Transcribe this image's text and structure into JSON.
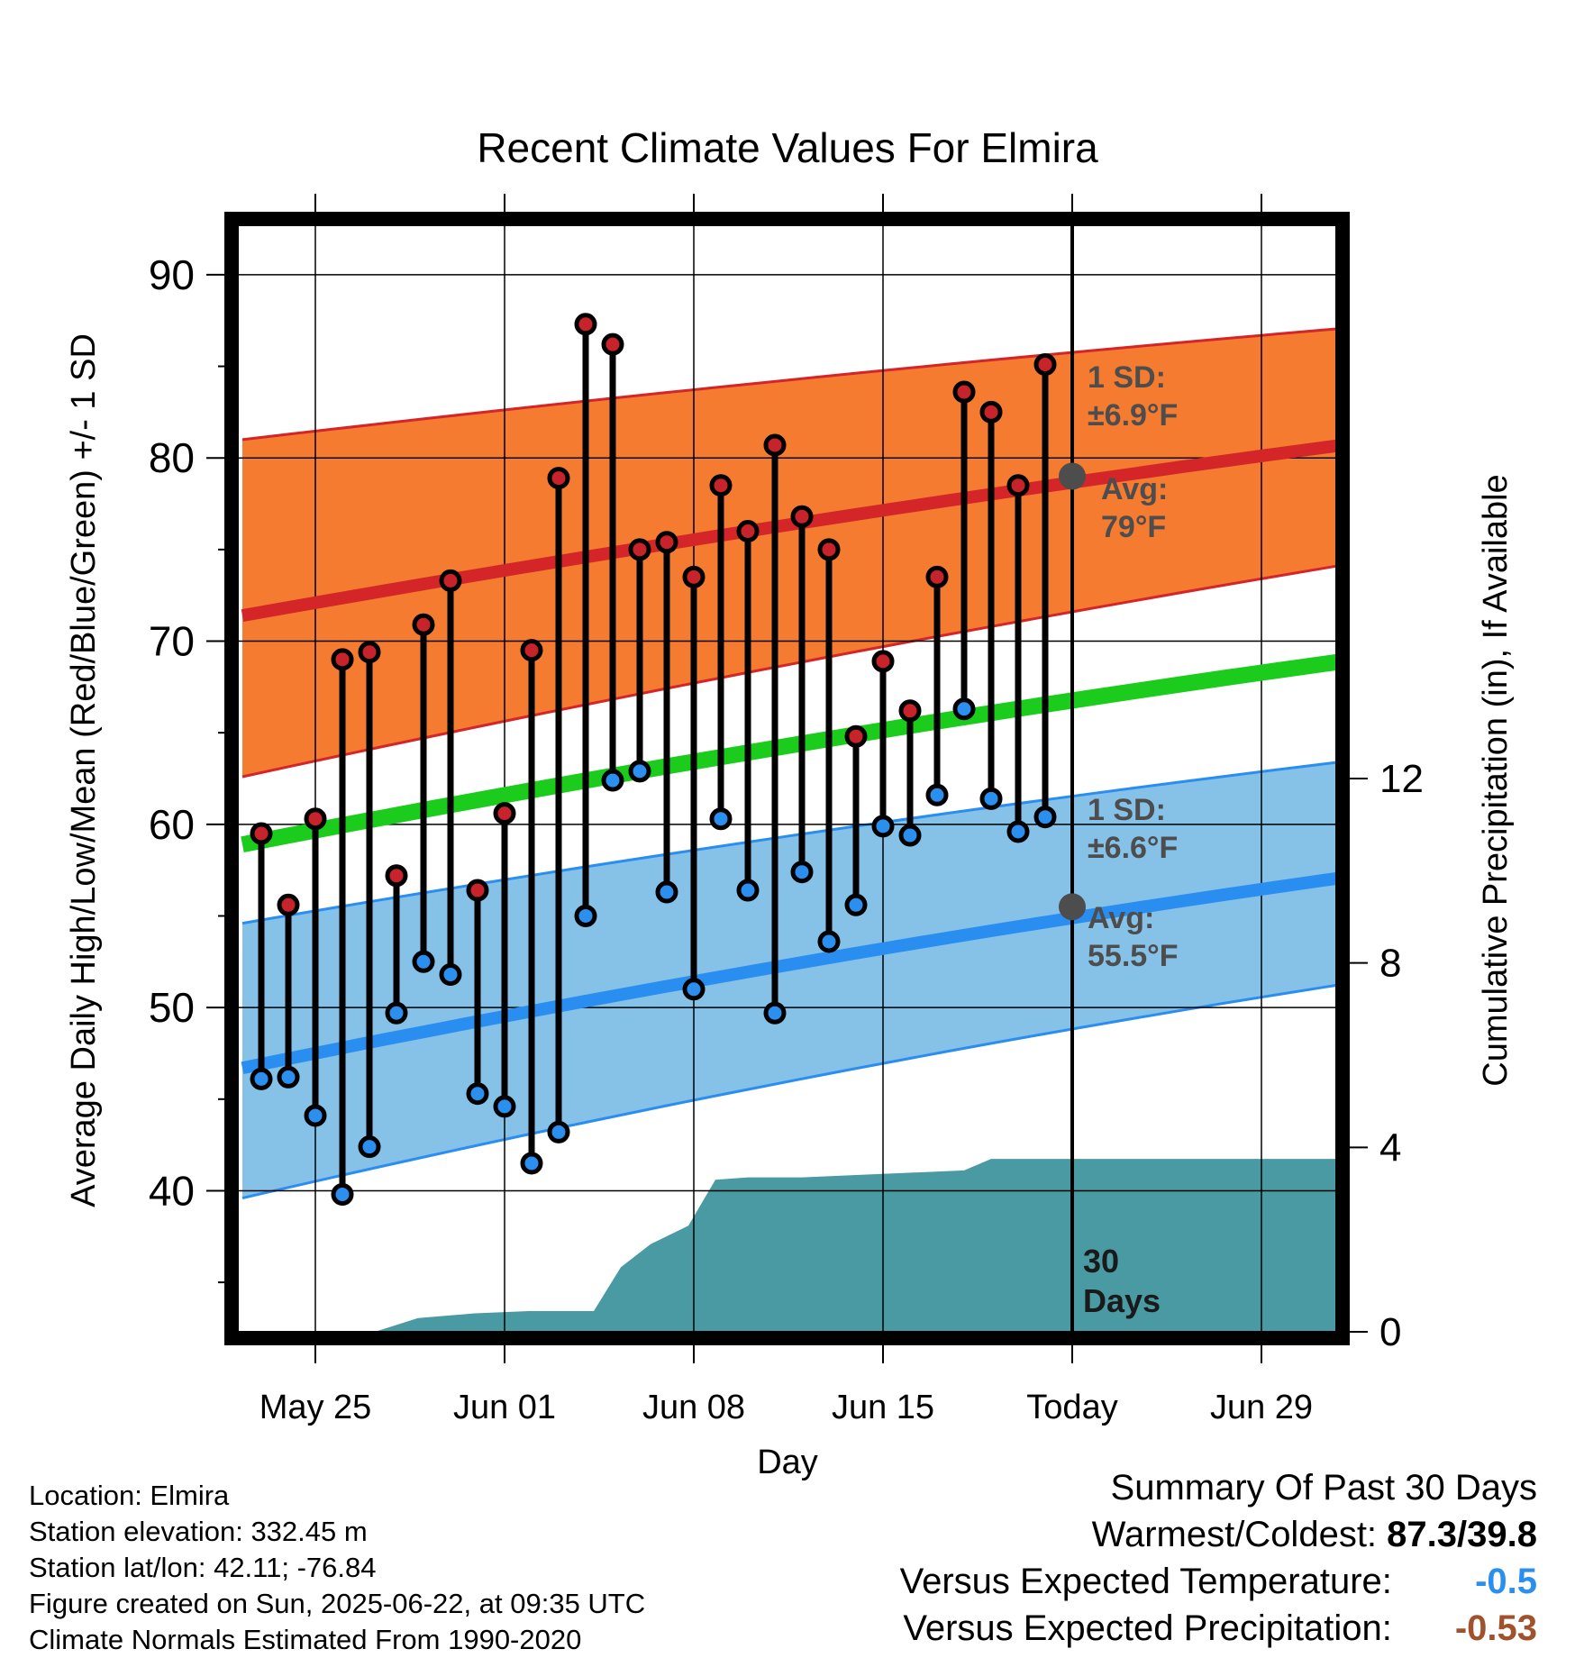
{
  "chart_data": {
    "type": "line",
    "title": "Recent Climate Values For Elmira",
    "xlabel": "Day",
    "ylabel_left": "Average Daily High/Low/Mean (Red/Blue/Green) +/- 1 SD",
    "ylabel_right": "Cumulative Precipitation (in), If Available",
    "ylim_left": [
      32.3,
      92.7
    ],
    "yticks_left": [
      40,
      50,
      60,
      70,
      80,
      90
    ],
    "ylim_right": [
      0,
      24
    ],
    "yticks_right": [
      0,
      4,
      8,
      12
    ],
    "xlim_days": [
      -37.6,
      11.3
    ],
    "x_ticks": [
      {
        "day": -28,
        "label": "May 25"
      },
      {
        "day": -21,
        "label": "Jun 01"
      },
      {
        "day": -14,
        "label": "Jun 08"
      },
      {
        "day": -7,
        "label": "Jun 15"
      },
      {
        "day": 0,
        "label": "Today"
      },
      {
        "day": 7,
        "label": "Jun 29"
      }
    ],
    "x_axis_note": "day 0 = Today (Jun 22)",
    "grid": true,
    "observed": {
      "days": [
        -30,
        -29,
        -28,
        -27,
        -26,
        -25,
        -24,
        -23,
        -22,
        -21,
        -20,
        -19,
        -18,
        -17,
        -16,
        -15,
        -14,
        -13,
        -12,
        -11,
        -10,
        -9,
        -8,
        -7,
        -6,
        -5,
        -4,
        -3,
        -2,
        -1
      ],
      "high": [
        59.5,
        55.6,
        60.3,
        69.0,
        69.4,
        57.2,
        70.9,
        73.3,
        56.4,
        60.6,
        69.5,
        78.9,
        87.3,
        86.2,
        75.0,
        75.4,
        73.5,
        78.5,
        76.0,
        80.7,
        76.8,
        75.0,
        64.8,
        68.9,
        66.2,
        73.5,
        83.6,
        82.5,
        78.5,
        85.1
      ],
      "low": [
        46.1,
        46.2,
        44.1,
        39.8,
        42.4,
        49.7,
        52.5,
        51.8,
        45.3,
        44.6,
        41.5,
        43.2,
        55.0,
        62.4,
        62.9,
        56.3,
        51.0,
        60.3,
        56.4,
        49.7,
        57.4,
        53.6,
        55.6,
        59.9,
        59.4,
        61.6,
        66.3,
        61.4,
        59.6,
        60.4
      ]
    },
    "normals": {
      "days": [
        -30.7,
        11
      ],
      "avg_high": [
        71.4,
        80.9
      ],
      "high_minus_sd": [
        62.6,
        74.4
      ],
      "high_plus_sd": [
        81.0,
        87.2
      ],
      "avg_mean": [
        58.9,
        69.1
      ],
      "avg_low": [
        46.7,
        57.3
      ],
      "low_minus_sd": [
        39.6,
        51.5
      ],
      "low_plus_sd": [
        54.6,
        63.6
      ]
    },
    "precipitation": {
      "days": [
        -30.7,
        -25.8,
        -24.2,
        -22.1,
        -20.1,
        -17.7,
        -16.7,
        -15.6,
        -14.2,
        -13.2,
        -12.0,
        -10.0,
        -8.0,
        -4.0,
        -3.0,
        11.0
      ],
      "cumulative": [
        0.0,
        0.0,
        0.3,
        0.4,
        0.45,
        0.45,
        1.4,
        1.9,
        2.3,
        3.3,
        3.35,
        3.35,
        3.4,
        3.5,
        3.75,
        3.75
      ]
    },
    "annotations": {
      "high_sd": "1 SD:",
      "high_sd_value": "±6.9°F",
      "high_avg": "Avg:",
      "high_avg_value": "79°F",
      "low_sd": "1 SD:",
      "low_sd_value": "±6.6°F",
      "low_avg": "Avg:",
      "low_avg_value": "55.5°F",
      "days_count": "30",
      "days_word": "Days"
    },
    "today_markers": {
      "high_avg": 79.0,
      "low_avg": 55.5
    },
    "colors": {
      "high_band": "#f47b30",
      "high_line": "#d42528",
      "low_band": "#86c1e8",
      "low_line": "#2a8ef0",
      "mean_line": "#1ccc1c",
      "precip": "#4a9aa3",
      "high_dot": "#c8232a",
      "low_dot": "#2b8ff0",
      "annotation": "#4d4d4d",
      "summary_cold": "#2b8ff0",
      "summary_dry": "#a0522d"
    }
  },
  "info": {
    "location": "Location: Elmira",
    "elevation": "Station elevation: 332.45 m",
    "latlon": "Station lat/lon: 42.11; -76.84",
    "created": "Figure created on Sun, 2025-06-22, at 09:35 UTC",
    "normals": "Climate Normals Estimated From 1990-2020"
  },
  "summary": {
    "heading": "Summary Of Past 30 Days",
    "warm_cold_label": "Warmest/Coldest:",
    "warm_cold_value": "87.3/39.8",
    "temp_label": "Versus Expected Temperature:",
    "temp_value": "-0.5",
    "precip_label": "Versus Expected Precipitation:",
    "precip_value": "-0.53"
  }
}
